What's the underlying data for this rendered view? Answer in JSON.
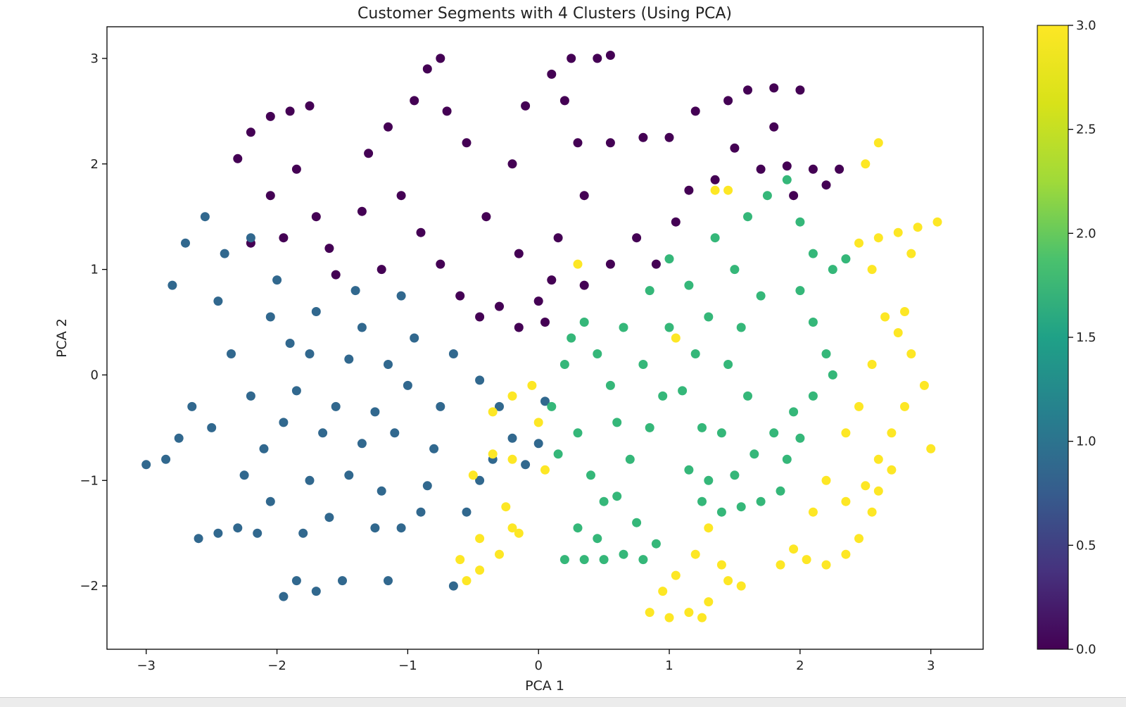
{
  "chart_data": {
    "type": "scatter",
    "title": "Customer Segments with 4 Clusters (Using PCA)",
    "xlabel": "PCA 1",
    "ylabel": "PCA 2",
    "xlim": [
      -3.3,
      3.4
    ],
    "ylim": [
      -2.6,
      3.3
    ],
    "xticks": [
      -3,
      -2,
      -1,
      0,
      1,
      2,
      3
    ],
    "xtick_labels": [
      "−3",
      "−2",
      "−1",
      "0",
      "1",
      "2",
      "3"
    ],
    "yticks": [
      -2,
      -1,
      0,
      1,
      2,
      3
    ],
    "ytick_labels": [
      "−2",
      "−1",
      "0",
      "1",
      "2",
      "3"
    ],
    "grid": false,
    "colormap": "viridis",
    "colorbar": {
      "min": 0.0,
      "max": 3.0,
      "ticks": [
        0.0,
        0.5,
        1.0,
        1.5,
        2.0,
        2.5,
        3.0
      ],
      "tick_labels": [
        "0.0",
        "0.5",
        "1.0",
        "1.5",
        "2.0",
        "2.5",
        "3.0"
      ]
    },
    "cluster_colors": [
      "#440154",
      "#31688e",
      "#35b779",
      "#fde725"
    ],
    "clusters": [
      {
        "cluster": 0,
        "x_range": [
          -2.6,
          2.4
        ],
        "y_range": [
          0.3,
          3.05
        ],
        "points": [
          [
            -2.2,
            2.3
          ],
          [
            -2.05,
            2.45
          ],
          [
            -1.9,
            2.5
          ],
          [
            -1.75,
            2.55
          ],
          [
            -2.3,
            2.05
          ],
          [
            -2.05,
            1.7
          ],
          [
            -1.85,
            1.95
          ],
          [
            -1.7,
            1.5
          ],
          [
            -1.6,
            1.2
          ],
          [
            -1.55,
            0.95
          ],
          [
            -1.95,
            1.3
          ],
          [
            -2.2,
            1.25
          ],
          [
            -1.35,
            1.55
          ],
          [
            -1.3,
            2.1
          ],
          [
            -1.15,
            2.35
          ],
          [
            -0.95,
            2.6
          ],
          [
            -0.85,
            2.9
          ],
          [
            -0.75,
            3.0
          ],
          [
            -0.7,
            2.5
          ],
          [
            -0.55,
            2.2
          ],
          [
            -1.05,
            1.7
          ],
          [
            -0.9,
            1.35
          ],
          [
            -0.75,
            1.05
          ],
          [
            -1.2,
            1.0
          ],
          [
            -0.6,
            0.75
          ],
          [
            -0.45,
            0.55
          ],
          [
            -0.3,
            0.65
          ],
          [
            -0.15,
            0.45
          ],
          [
            0.05,
            0.5
          ],
          [
            -0.4,
            1.5
          ],
          [
            -0.2,
            2.0
          ],
          [
            -0.1,
            2.55
          ],
          [
            0.1,
            2.85
          ],
          [
            0.25,
            3.0
          ],
          [
            0.45,
            3.0
          ],
          [
            0.55,
            3.03
          ],
          [
            0.2,
            2.6
          ],
          [
            0.3,
            2.2
          ],
          [
            0.55,
            2.2
          ],
          [
            0.8,
            2.25
          ],
          [
            1.0,
            2.25
          ],
          [
            0.35,
            1.7
          ],
          [
            0.15,
            1.3
          ],
          [
            0.1,
            0.9
          ],
          [
            0.35,
            0.85
          ],
          [
            0.55,
            1.05
          ],
          [
            0.75,
            1.3
          ],
          [
            0.9,
            1.05
          ],
          [
            1.05,
            1.45
          ],
          [
            1.2,
            2.5
          ],
          [
            1.45,
            2.6
          ],
          [
            1.6,
            2.7
          ],
          [
            1.8,
            2.72
          ],
          [
            2.0,
            2.7
          ],
          [
            1.8,
            2.35
          ],
          [
            1.5,
            2.15
          ],
          [
            1.7,
            1.95
          ],
          [
            1.9,
            1.98
          ],
          [
            2.1,
            1.95
          ],
          [
            2.3,
            1.95
          ],
          [
            1.95,
            1.7
          ],
          [
            2.2,
            1.8
          ],
          [
            1.35,
            1.85
          ],
          [
            1.15,
            1.75
          ],
          [
            -0.15,
            1.15
          ],
          [
            0.0,
            0.7
          ]
        ]
      },
      {
        "cluster": 1,
        "x_range": [
          -3.0,
          0.1
        ],
        "y_range": [
          -2.15,
          1.55
        ],
        "points": [
          [
            -3.0,
            -0.85
          ],
          [
            -2.85,
            -0.8
          ],
          [
            -2.75,
            -0.6
          ],
          [
            -2.65,
            -0.3
          ],
          [
            -2.8,
            0.85
          ],
          [
            -2.7,
            1.25
          ],
          [
            -2.55,
            1.5
          ],
          [
            -2.4,
            1.15
          ],
          [
            -2.45,
            0.7
          ],
          [
            -2.35,
            0.2
          ],
          [
            -2.2,
            -0.2
          ],
          [
            -2.5,
            -0.5
          ],
          [
            -2.6,
            -1.55
          ],
          [
            -2.45,
            -1.5
          ],
          [
            -2.3,
            -1.45
          ],
          [
            -2.15,
            -1.5
          ],
          [
            -2.05,
            -1.2
          ],
          [
            -2.25,
            -0.95
          ],
          [
            -2.1,
            -0.7
          ],
          [
            -1.95,
            -0.45
          ],
          [
            -1.85,
            -0.15
          ],
          [
            -1.75,
            0.2
          ],
          [
            -1.7,
            0.6
          ],
          [
            -2.0,
            0.9
          ],
          [
            -2.2,
            1.3
          ],
          [
            -1.9,
            0.3
          ],
          [
            -1.65,
            -0.55
          ],
          [
            -1.75,
            -1.0
          ],
          [
            -1.8,
            -1.5
          ],
          [
            -1.6,
            -1.35
          ],
          [
            -1.45,
            -0.95
          ],
          [
            -1.35,
            -0.65
          ],
          [
            -1.25,
            -0.35
          ],
          [
            -1.15,
            0.1
          ],
          [
            -1.35,
            0.45
          ],
          [
            -1.4,
            0.8
          ],
          [
            -1.05,
            0.75
          ],
          [
            -0.95,
            0.35
          ],
          [
            -1.0,
            -0.1
          ],
          [
            -1.1,
            -0.55
          ],
          [
            -1.2,
            -1.1
          ],
          [
            -1.25,
            -1.45
          ],
          [
            -1.05,
            -1.45
          ],
          [
            -0.9,
            -1.3
          ],
          [
            -0.85,
            -1.05
          ],
          [
            -0.8,
            -0.7
          ],
          [
            -0.75,
            -0.3
          ],
          [
            -0.65,
            0.2
          ],
          [
            -0.45,
            -0.05
          ],
          [
            -0.3,
            -0.3
          ],
          [
            -0.2,
            -0.6
          ],
          [
            -0.1,
            -0.85
          ],
          [
            0.0,
            -0.65
          ],
          [
            0.05,
            -0.25
          ],
          [
            -1.95,
            -2.1
          ],
          [
            -1.85,
            -1.95
          ],
          [
            -1.7,
            -2.05
          ],
          [
            -1.5,
            -1.95
          ],
          [
            -1.15,
            -1.95
          ],
          [
            -0.65,
            -2.0
          ],
          [
            -0.55,
            -1.3
          ],
          [
            -0.45,
            -1.0
          ],
          [
            -0.35,
            -0.8
          ],
          [
            -1.55,
            -0.3
          ],
          [
            -1.45,
            0.15
          ],
          [
            -2.05,
            0.55
          ]
        ]
      },
      {
        "cluster": 2,
        "x_range": [
          0.0,
          2.45
        ],
        "y_range": [
          -1.8,
          1.85
        ],
        "points": [
          [
            0.1,
            -0.3
          ],
          [
            0.2,
            0.1
          ],
          [
            0.25,
            0.35
          ],
          [
            0.35,
            0.5
          ],
          [
            0.45,
            0.2
          ],
          [
            0.55,
            -0.1
          ],
          [
            0.15,
            -0.75
          ],
          [
            0.3,
            -0.55
          ],
          [
            0.4,
            -0.95
          ],
          [
            0.5,
            -1.2
          ],
          [
            0.3,
            -1.45
          ],
          [
            0.2,
            -1.75
          ],
          [
            0.35,
            -1.75
          ],
          [
            0.5,
            -1.75
          ],
          [
            0.65,
            -1.7
          ],
          [
            0.8,
            -1.75
          ],
          [
            0.9,
            -1.6
          ],
          [
            0.75,
            -1.4
          ],
          [
            0.6,
            -1.15
          ],
          [
            0.7,
            -0.8
          ],
          [
            0.85,
            -0.5
          ],
          [
            0.95,
            -0.2
          ],
          [
            0.8,
            0.1
          ],
          [
            0.65,
            0.45
          ],
          [
            0.85,
            0.8
          ],
          [
            1.0,
            1.1
          ],
          [
            1.15,
            0.85
          ],
          [
            1.3,
            0.55
          ],
          [
            1.2,
            0.2
          ],
          [
            1.1,
            -0.15
          ],
          [
            1.25,
            -0.5
          ],
          [
            1.15,
            -0.9
          ],
          [
            1.25,
            -1.2
          ],
          [
            1.4,
            -1.3
          ],
          [
            1.55,
            -1.25
          ],
          [
            1.7,
            -1.2
          ],
          [
            1.85,
            -1.1
          ],
          [
            1.5,
            -0.95
          ],
          [
            1.65,
            -0.75
          ],
          [
            1.8,
            -0.55
          ],
          [
            1.95,
            -0.35
          ],
          [
            1.6,
            -0.2
          ],
          [
            1.45,
            0.1
          ],
          [
            1.55,
            0.45
          ],
          [
            1.7,
            0.75
          ],
          [
            1.5,
            1.0
          ],
          [
            1.35,
            1.3
          ],
          [
            1.6,
            1.5
          ],
          [
            1.75,
            1.7
          ],
          [
            1.9,
            1.85
          ],
          [
            2.0,
            1.45
          ],
          [
            2.1,
            1.15
          ],
          [
            2.25,
            1.0
          ],
          [
            2.35,
            1.1
          ],
          [
            2.0,
            0.8
          ],
          [
            2.1,
            0.5
          ],
          [
            2.2,
            0.2
          ],
          [
            2.25,
            0.0
          ],
          [
            2.1,
            -0.2
          ],
          [
            2.0,
            -0.6
          ],
          [
            1.9,
            -0.8
          ],
          [
            1.4,
            -0.55
          ],
          [
            1.0,
            0.45
          ],
          [
            0.6,
            -0.45
          ],
          [
            0.45,
            -1.55
          ],
          [
            1.3,
            -1.0
          ]
        ]
      },
      {
        "cluster": 3,
        "x_range": [
          -0.6,
          3.05
        ],
        "y_range": [
          -2.3,
          2.2
        ],
        "points": [
          [
            -0.55,
            -1.95
          ],
          [
            -0.45,
            -1.85
          ],
          [
            -0.3,
            -1.7
          ],
          [
            -0.2,
            -1.45
          ],
          [
            -0.45,
            -1.55
          ],
          [
            -0.6,
            -1.75
          ],
          [
            -0.5,
            -0.95
          ],
          [
            -0.35,
            -0.75
          ],
          [
            -0.2,
            -0.8
          ],
          [
            -0.25,
            -1.25
          ],
          [
            -0.15,
            -1.5
          ],
          [
            0.05,
            -0.9
          ],
          [
            -0.35,
            -0.35
          ],
          [
            -0.2,
            -0.2
          ],
          [
            -0.05,
            -0.1
          ],
          [
            0.0,
            -0.45
          ],
          [
            0.85,
            -2.25
          ],
          [
            1.0,
            -2.3
          ],
          [
            1.15,
            -2.25
          ],
          [
            1.3,
            -2.15
          ],
          [
            1.45,
            -1.95
          ],
          [
            1.55,
            -2.0
          ],
          [
            1.4,
            -1.8
          ],
          [
            1.2,
            -1.7
          ],
          [
            1.05,
            -1.9
          ],
          [
            0.95,
            -2.05
          ],
          [
            1.3,
            -1.45
          ],
          [
            1.25,
            -2.3
          ],
          [
            1.85,
            -1.8
          ],
          [
            1.95,
            -1.65
          ],
          [
            2.05,
            -1.75
          ],
          [
            2.2,
            -1.8
          ],
          [
            2.35,
            -1.7
          ],
          [
            2.45,
            -1.55
          ],
          [
            2.55,
            -1.3
          ],
          [
            2.35,
            -1.2
          ],
          [
            2.2,
            -1.0
          ],
          [
            2.1,
            -1.3
          ],
          [
            2.5,
            -1.05
          ],
          [
            2.6,
            -0.8
          ],
          [
            2.7,
            -0.55
          ],
          [
            2.8,
            -0.3
          ],
          [
            2.95,
            -0.1
          ],
          [
            2.85,
            0.2
          ],
          [
            2.75,
            0.4
          ],
          [
            2.8,
            0.6
          ],
          [
            2.65,
            0.55
          ],
          [
            2.55,
            0.1
          ],
          [
            2.45,
            -0.3
          ],
          [
            2.35,
            -0.55
          ],
          [
            2.6,
            -1.1
          ],
          [
            2.7,
            -0.9
          ],
          [
            3.0,
            -0.7
          ],
          [
            2.45,
            1.25
          ],
          [
            2.6,
            1.3
          ],
          [
            2.75,
            1.35
          ],
          [
            2.9,
            1.4
          ],
          [
            3.05,
            1.45
          ],
          [
            2.85,
            1.15
          ],
          [
            2.6,
            2.2
          ],
          [
            2.5,
            2.0
          ],
          [
            2.55,
            1.0
          ],
          [
            1.35,
            1.75
          ],
          [
            1.45,
            1.75
          ],
          [
            0.3,
            1.05
          ],
          [
            1.05,
            0.35
          ]
        ]
      }
    ]
  }
}
